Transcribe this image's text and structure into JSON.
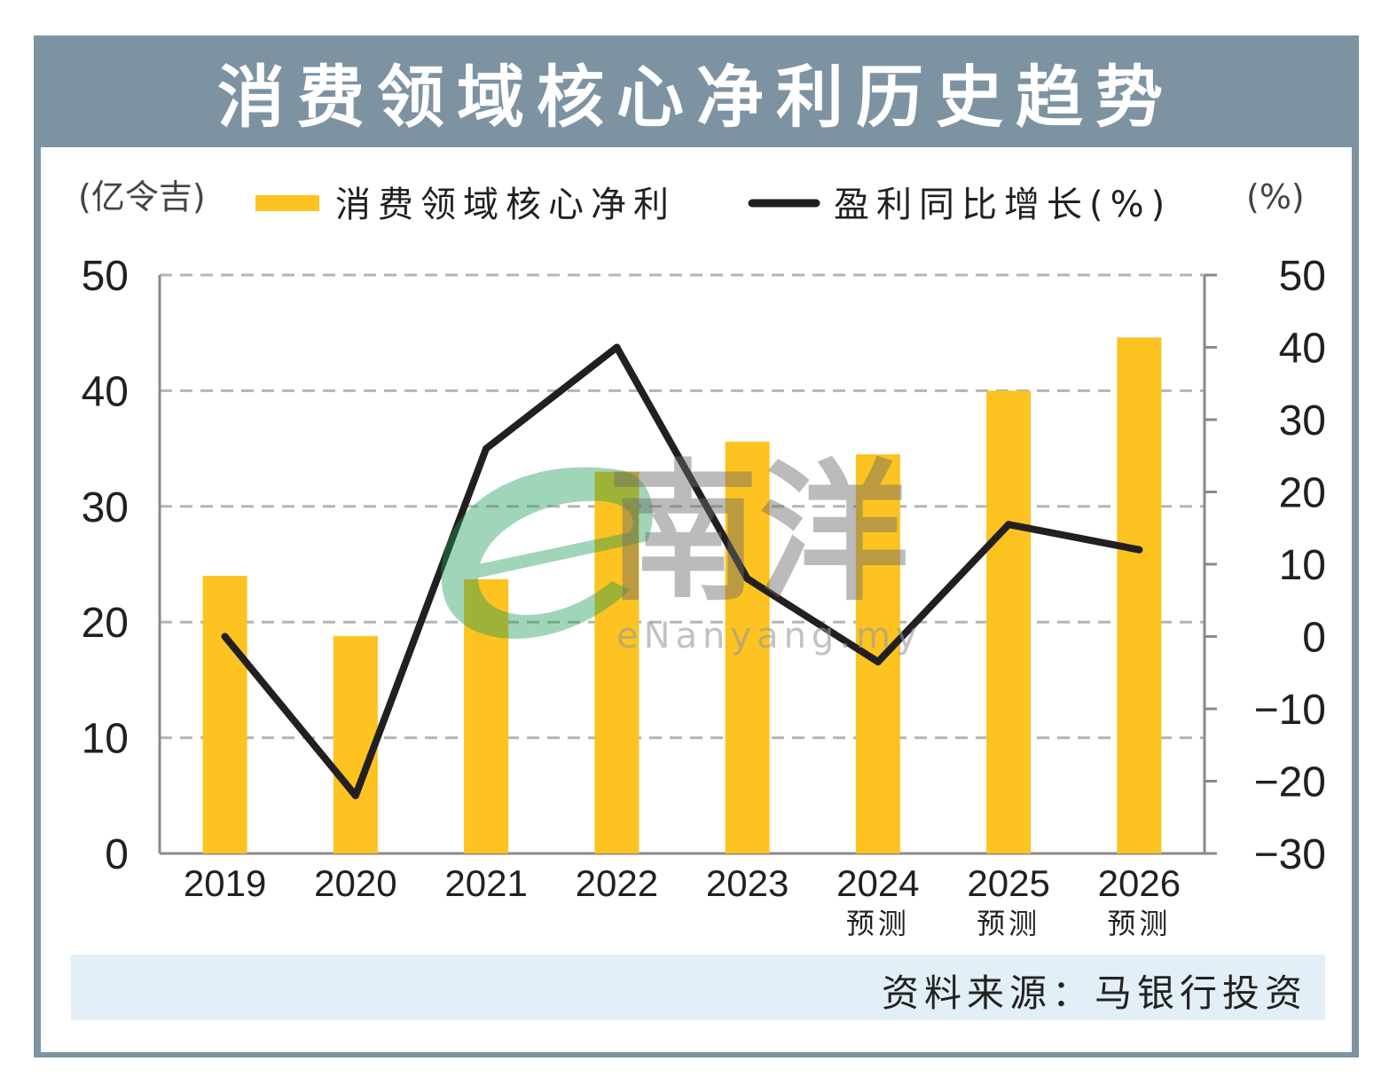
{
  "title": "消费领域核心净利历史趋势",
  "source": "资料来源：马银行投资",
  "watermark": {
    "brand": "南洋",
    "url": "eNanyang.my"
  },
  "colors": {
    "bar": "#fcc321",
    "line": "#231f20",
    "frame": "#7d93a2",
    "source_bg": "#e2eff7"
  },
  "chart_data": {
    "type": "bar",
    "title": "消费领域核心净利历史趋势",
    "categories": [
      "2019",
      "2020",
      "2021",
      "2022",
      "2023",
      "2024",
      "2025",
      "2026"
    ],
    "category_sublabels": [
      "",
      "",
      "",
      "",
      "",
      "预测",
      "预测",
      "预测"
    ],
    "y_left": {
      "unit_label": "(亿令吉)",
      "range": [
        0,
        50
      ],
      "ticks": [
        "0",
        "10",
        "20",
        "30",
        "40",
        "50"
      ]
    },
    "y_right": {
      "unit_label": "(%)",
      "range": [
        -30,
        50
      ],
      "ticks": [
        "−30",
        "−20",
        "−10",
        "0",
        "10",
        "20",
        "30",
        "40",
        "50"
      ]
    },
    "series": [
      {
        "name": "消费领域核心净利",
        "type": "bar",
        "axis": "left",
        "values": [
          24.0,
          18.8,
          23.7,
          33.0,
          35.6,
          34.5,
          40.0,
          44.6
        ]
      },
      {
        "name": "盈利同比增长(%)",
        "type": "line",
        "axis": "right",
        "values": [
          0,
          -22,
          26,
          40,
          8,
          -3.5,
          15.5,
          12
        ]
      }
    ],
    "grid": "horizontal-dashed",
    "legend": "top"
  }
}
